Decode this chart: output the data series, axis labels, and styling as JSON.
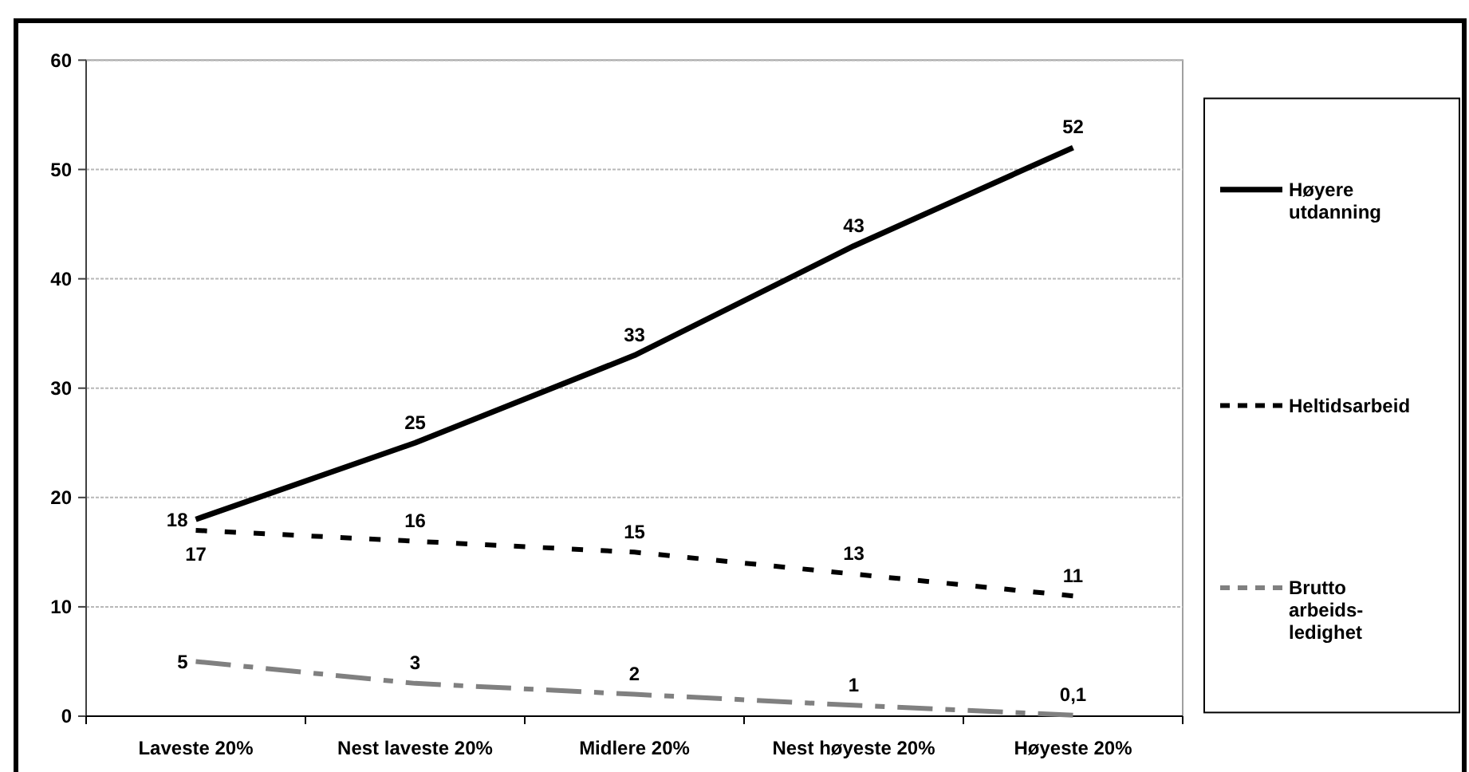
{
  "chart_data": {
    "type": "line",
    "categories": [
      "Laveste 20%",
      "Nest laveste 20%",
      "Midlere 20%",
      "Nest høyeste 20%",
      "Høyeste 20%"
    ],
    "series": [
      {
        "name": "Høyere utdanning",
        "color": "#000000",
        "line_style": "solid",
        "values": [
          18,
          25,
          33,
          43,
          52
        ],
        "value_labels": [
          "18",
          "25",
          "33",
          "43",
          "52"
        ]
      },
      {
        "name": "Heltidsarbeid",
        "color": "#000000",
        "line_style": "dotted",
        "values": [
          17,
          16,
          15,
          13,
          11
        ],
        "value_labels": [
          "17",
          "16",
          "15",
          "13",
          "11"
        ]
      },
      {
        "name": "Brutto arbeids-ledighet",
        "color": "#808080",
        "line_style": "dashed",
        "values": [
          5,
          3,
          2,
          1,
          0.1
        ],
        "value_labels": [
          "5",
          "3",
          "2",
          "1",
          "0,1"
        ]
      }
    ],
    "ylim": [
      0,
      60
    ],
    "yticks": [
      0,
      10,
      20,
      30,
      40,
      50,
      60
    ],
    "grid": "y",
    "legend": "right"
  }
}
